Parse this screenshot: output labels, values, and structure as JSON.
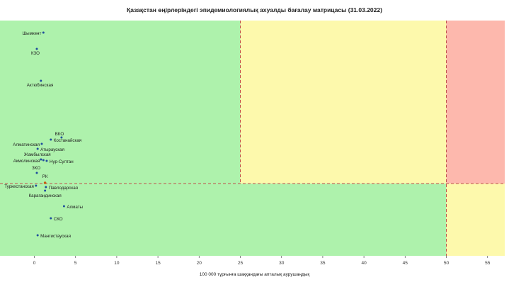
{
  "title": "Қазақстан өңірлеріндегі эпидемиологиялық ахуалды бағалау матрицасы  (31.03.2022)",
  "chart_data": {
    "type": "scatter",
    "title": "Қазақстан өңірлеріндегі эпидемиологиялық ахуалды бағалау матрицасы  (31.03.2022)",
    "xlabel": "100 000 тұрғынға шаққандағы апталық аурушаңдық",
    "ylabel": "",
    "xlim": [
      -4,
      57
    ],
    "xticks": [
      0,
      5,
      10,
      15,
      20,
      25,
      30,
      35,
      40,
      45,
      50,
      55
    ],
    "thresholds": {
      "x": [
        25,
        50
      ]
    },
    "zone_colors": {
      "green": "#aef2ac",
      "yellow": "#fdf9ac",
      "red": "#fdb8ad",
      "threshold_line": "#c0504d",
      "point": "#1f4e9c",
      "rk_point": "#c65911"
    },
    "grid": false,
    "points": [
      {
        "name": "Шымкент",
        "x": 1.1
      },
      {
        "name": "КЗО",
        "x": 0.3
      },
      {
        "name": "Актюбинская",
        "x": 0.8
      },
      {
        "name": "ВКО",
        "x": 3.3
      },
      {
        "name": "Костанайская",
        "x": 2.0
      },
      {
        "name": "Алматинская",
        "x": 0.9
      },
      {
        "name": "Атырауская",
        "x": 0.4
      },
      {
        "name": "Жамбылская",
        "x": 0.8
      },
      {
        "name": "Акмолинская",
        "x": 1.1
      },
      {
        "name": "Нур-Султан",
        "x": 1.5
      },
      {
        "name": "ЗКО",
        "x": 0.3
      },
      {
        "name": "РК",
        "x": 1.3
      },
      {
        "name": "Туркестанская",
        "x": 0.2
      },
      {
        "name": "Павлодарская",
        "x": 1.4
      },
      {
        "name": "Карагандинская",
        "x": 1.3
      },
      {
        "name": "Алматы",
        "x": 3.6
      },
      {
        "name": "СКО",
        "x": 2.0
      },
      {
        "name": "Мангистауская",
        "x": 0.4
      }
    ]
  }
}
